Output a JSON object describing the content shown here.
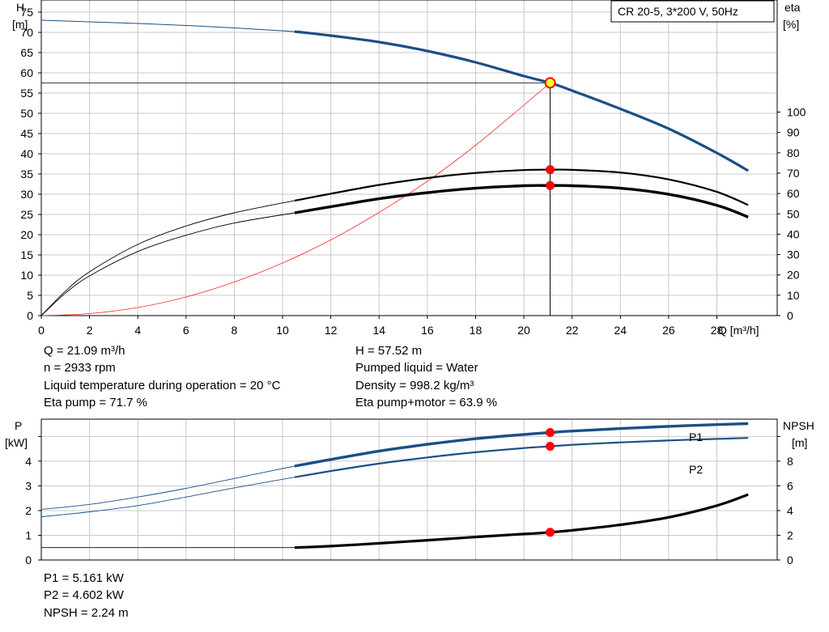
{
  "top_chart": {
    "title": "CR 20-5, 3*200 V, 50Hz",
    "y_label_line1": "H",
    "y_label_line2": "[m]",
    "y2_label_line1": "eta",
    "y2_label_line2": "[%]",
    "x_label": "Q [m³/h]"
  },
  "bottom_chart": {
    "y_label_line1": "P",
    "y_label_line2": "[kW]",
    "y2_label_line1": "NPSH",
    "y2_label_line2": "[m]",
    "series_p1_label": "P1",
    "series_p2_label": "P2"
  },
  "info_block_1": {
    "left": [
      "Q = 21.09 m³/h",
      "n = 2933 rpm",
      "Liquid temperature during operation = 20 °C",
      "Eta pump = 71.7 %"
    ],
    "right": [
      "H = 57.52 m",
      "Pumped liquid = Water",
      "Density = 998.2 kg/m³",
      "Eta pump+motor = 63.9 %"
    ]
  },
  "info_block_2": {
    "lines": [
      "P1 = 5.161 kW",
      "P2 = 4.602 kW",
      "NPSH = 2.24 m"
    ]
  },
  "colors": {
    "pump_curve": "#1a4f86",
    "system_curve": "#ff2a2a",
    "marker": "#ff0000",
    "marker_fill_duty": "#ffff33",
    "grid": "#c8c8c8",
    "efficiency": "#000000"
  },
  "chart_data": [
    {
      "type": "line",
      "name": "pump-performance",
      "title": "CR 20-5, 3*200 V, 50Hz",
      "xlabel": "Q [m³/h]",
      "ylabel": "H [m]",
      "y2label": "eta [%]",
      "xlim": [
        0,
        30.5
      ],
      "ylim": [
        0,
        78
      ],
      "y2lim": [
        0,
        100
      ],
      "x_ticks": [
        0,
        2,
        4,
        6,
        8,
        10,
        12,
        14,
        16,
        18,
        20,
        22,
        24,
        26,
        28
      ],
      "y_ticks": [
        0,
        5,
        10,
        15,
        20,
        25,
        30,
        35,
        40,
        45,
        50,
        55,
        60,
        65,
        70,
        75
      ],
      "y2_ticks": [
        0,
        10,
        20,
        30,
        40,
        50,
        60,
        70,
        80,
        90,
        100
      ],
      "grid": true,
      "series": [
        {
          "axis": "H",
          "thin_x": [
            0,
            2,
            4,
            6,
            8,
            10.5
          ],
          "thin_y": [
            73,
            72.6,
            72.2,
            71.7,
            71.1,
            70.2
          ],
          "x": [
            10.5,
            12,
            14,
            16,
            18,
            20,
            21.09,
            22,
            24,
            26,
            28,
            29.3
          ],
          "y": [
            70.2,
            69.2,
            67.6,
            65.4,
            62.6,
            59.2,
            57.52,
            55.6,
            51.1,
            46.2,
            40.2,
            35.8
          ]
        },
        {
          "axis": "eta",
          "thin_x": [
            0,
            1,
            2,
            4,
            6,
            8,
            10.5
          ],
          "thin_y": [
            0,
            12,
            21.5,
            35,
            44,
            50.5,
            56.5
          ],
          "x": [
            10.5,
            12,
            14,
            16,
            18,
            20,
            21.09,
            22,
            24,
            26,
            28,
            29.3
          ],
          "y": [
            56.5,
            59.9,
            64.2,
            67.6,
            70.1,
            71.5,
            71.7,
            71.6,
            70.3,
            66.9,
            60.8,
            54.3
          ]
        },
        {
          "axis": "eta",
          "thin_x": [
            0,
            1,
            2,
            4,
            6,
            8,
            10.5
          ],
          "thin_y": [
            0,
            11,
            19.5,
            31.5,
            39.5,
            45.5,
            50.5
          ],
          "x": [
            10.5,
            12,
            14,
            16,
            18,
            20,
            21.09,
            22,
            24,
            26,
            28,
            29.3
          ],
          "y": [
            50.5,
            53.5,
            57.4,
            60.4,
            62.6,
            63.8,
            63.9,
            63.8,
            62.6,
            59.6,
            54.2,
            48.4
          ]
        },
        {
          "axis": "H",
          "x": [
            0,
            2,
            4,
            6,
            8,
            10,
            12,
            14,
            16,
            18,
            20,
            21.09
          ],
          "y": [
            0,
            0.5,
            2,
            4.6,
            8.3,
            13,
            18.7,
            25.5,
            33.2,
            42.1,
            52,
            57.52
          ]
        }
      ],
      "duty_point": {
        "x": 21.09,
        "H": 57.52,
        "eta_pump": 71.7,
        "eta_pump_motor": 63.9
      }
    },
    {
      "type": "line",
      "name": "power-npsh",
      "ylabel": "P [kW]",
      "y2label": "NPSH [m]",
      "xlim": [
        0,
        30.5
      ],
      "ylim": [
        0,
        5.7
      ],
      "y2lim": [
        0,
        11.4
      ],
      "y_ticks": [
        0,
        1,
        2,
        3,
        4
      ],
      "y2_ticks": [
        0,
        2,
        4,
        6,
        8
      ],
      "grid": true,
      "series": [
        {
          "name": "P1",
          "axis": "P",
          "thin_x": [
            0,
            2,
            4,
            6,
            8,
            10.5
          ],
          "thin_y": [
            2.05,
            2.25,
            2.55,
            2.9,
            3.3,
            3.8
          ],
          "x": [
            10.5,
            12,
            14,
            16,
            18,
            20,
            21.09,
            22,
            24,
            26,
            28,
            29.3
          ],
          "y": [
            3.8,
            4.07,
            4.41,
            4.68,
            4.91,
            5.08,
            5.161,
            5.22,
            5.32,
            5.41,
            5.48,
            5.52
          ]
        },
        {
          "name": "P2",
          "axis": "P",
          "thin_x": [
            0,
            2,
            4,
            6,
            8,
            10.5
          ],
          "thin_y": [
            1.75,
            1.95,
            2.2,
            2.55,
            2.92,
            3.35
          ],
          "x": [
            10.5,
            12,
            14,
            16,
            18,
            20,
            21.09,
            22,
            24,
            26,
            28,
            29.3
          ],
          "y": [
            3.35,
            3.6,
            3.9,
            4.15,
            4.36,
            4.53,
            4.602,
            4.66,
            4.76,
            4.84,
            4.9,
            4.94
          ]
        },
        {
          "axis": "NPSH",
          "thin_x": [
            0,
            2,
            4,
            6,
            8,
            10.5
          ],
          "thin_y": [
            1.0,
            1.0,
            1.0,
            1.0,
            1.0,
            1.0
          ],
          "x": [
            10.5,
            12,
            14,
            16,
            18,
            20,
            21.09,
            22,
            24,
            26,
            28,
            29.3
          ],
          "y": [
            1.0,
            1.12,
            1.35,
            1.6,
            1.86,
            2.1,
            2.24,
            2.4,
            2.85,
            3.45,
            4.4,
            5.3
          ]
        }
      ],
      "duty_point": {
        "x": 21.09,
        "P1": 5.161,
        "P2": 4.602,
        "NPSH": 2.24
      }
    }
  ]
}
